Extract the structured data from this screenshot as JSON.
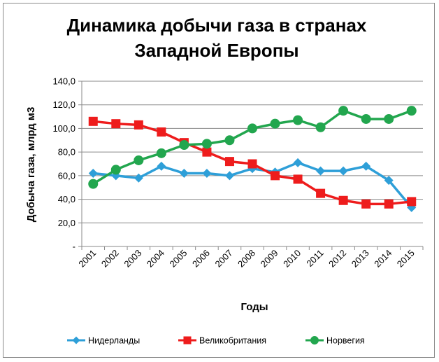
{
  "chart_data": {
    "type": "line",
    "title_line1": "Динамика добычи газа в странах",
    "title_line2": "Западной Европы",
    "xlabel": "Годы",
    "ylabel": "Добыча газа, млрд м3",
    "categories": [
      "2001",
      "2002",
      "2003",
      "2004",
      "2005",
      "2006",
      "2007",
      "2008",
      "2009",
      "2010",
      "2011",
      "2012",
      "2013",
      "2014",
      "2015"
    ],
    "ylim": [
      0,
      140
    ],
    "yticks": [
      {
        "value": 140,
        "label": "140,0"
      },
      {
        "value": 120,
        "label": "120,0"
      },
      {
        "value": 100,
        "label": "100,0"
      },
      {
        "value": 80,
        "label": "80,0"
      },
      {
        "value": 60,
        "label": "60,0"
      },
      {
        "value": 40,
        "label": "40,0"
      },
      {
        "value": 20,
        "label": "20,0"
      },
      {
        "value": 0,
        "label": "-"
      }
    ],
    "grid": "horizontal",
    "legend_position": "bottom",
    "series": [
      {
        "name": "Нидерланды",
        "color": "#2e9fd8",
        "marker": "diamond",
        "values": [
          62,
          60,
          58,
          68,
          62,
          62,
          60,
          66,
          63,
          71,
          64,
          64,
          68,
          56,
          33
        ]
      },
      {
        "name": "Великобритания",
        "color": "#ee1c1c",
        "marker": "square",
        "values": [
          106,
          104,
          103,
          97,
          88,
          80,
          72,
          70,
          60,
          57,
          45,
          39,
          36,
          36,
          38
        ]
      },
      {
        "name": "Норвегия",
        "color": "#22a64e",
        "marker": "circle",
        "values": [
          53,
          65,
          73,
          79,
          86,
          87,
          90,
          100,
          104,
          107,
          101,
          115,
          108,
          108,
          115
        ]
      }
    ]
  }
}
